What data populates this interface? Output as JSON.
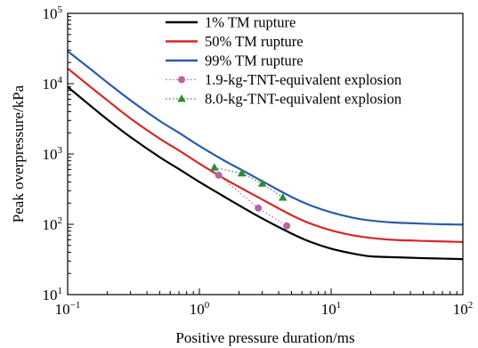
{
  "chart_data": {
    "type": "line",
    "xlabel": "Positive pressure duration/ms",
    "ylabel": "Peak overpressure/kPa",
    "x_scale": "log",
    "y_scale": "log",
    "xlim": [
      0.1,
      100
    ],
    "ylim": [
      10,
      100000
    ],
    "x_ticks": [
      {
        "value": 0.1,
        "base": "10",
        "exp": "−1"
      },
      {
        "value": 1,
        "base": "10",
        "exp": "0"
      },
      {
        "value": 10,
        "base": "10",
        "exp": "1"
      },
      {
        "value": 100,
        "base": "10",
        "exp": "2"
      }
    ],
    "y_ticks": [
      {
        "value": 10,
        "base": "10",
        "exp": "1"
      },
      {
        "value": 100,
        "base": "10",
        "exp": "2"
      },
      {
        "value": 1000,
        "base": "10",
        "exp": "3"
      },
      {
        "value": 10000,
        "base": "10",
        "exp": "4"
      },
      {
        "value": 100000,
        "base": "10",
        "exp": "5"
      }
    ],
    "grid": false,
    "legend_position": "top-right",
    "series": [
      {
        "name": "1% TM rupture",
        "style": "line",
        "color": "#000000",
        "x": [
          0.1,
          0.15,
          0.2,
          0.3,
          0.5,
          0.7,
          1,
          1.5,
          2,
          3,
          5,
          7,
          10,
          15,
          20,
          30,
          50,
          70,
          100
        ],
        "y": [
          9000,
          4800,
          3100,
          1740,
          900,
          610,
          400,
          255,
          186,
          121,
          74,
          56,
          45,
          38,
          35,
          34,
          33,
          32.5,
          32
        ]
      },
      {
        "name": "50% TM rupture",
        "style": "line",
        "color": "#d62728",
        "x": [
          0.1,
          0.15,
          0.2,
          0.3,
          0.5,
          0.7,
          1,
          1.5,
          2,
          3,
          5,
          7,
          10,
          15,
          20,
          30,
          50,
          70,
          100
        ],
        "y": [
          16500,
          8900,
          5800,
          3200,
          1650,
          1120,
          730,
          460,
          340,
          225,
          135,
          102,
          82,
          69,
          64,
          60,
          58,
          57,
          56
        ]
      },
      {
        "name": "99% TM rupture",
        "style": "line",
        "color": "#2a5ca8",
        "x": [
          0.1,
          0.15,
          0.2,
          0.3,
          0.5,
          0.7,
          1,
          1.5,
          2,
          3,
          5,
          7,
          10,
          15,
          20,
          30,
          50,
          70,
          100
        ],
        "y": [
          29000,
          16000,
          10400,
          5800,
          2950,
          2000,
          1300,
          830,
          620,
          410,
          245,
          185,
          148,
          123,
          113,
          106,
          102,
          100,
          99
        ]
      },
      {
        "name": "1.9-kg-TNT-equivalent explosion",
        "style": "dotted-marker",
        "marker": "circle",
        "color": "#b565a7",
        "x": [
          1.4,
          2.8,
          4.6
        ],
        "y": [
          500,
          170,
          95
        ]
      },
      {
        "name": "8.0-kg-TNT-equivalent explosion",
        "style": "dotted-marker",
        "marker": "triangle",
        "color": "#2e8b3a",
        "x": [
          1.3,
          2.1,
          3.0,
          4.3
        ],
        "y": [
          640,
          530,
          380,
          240
        ]
      }
    ]
  }
}
